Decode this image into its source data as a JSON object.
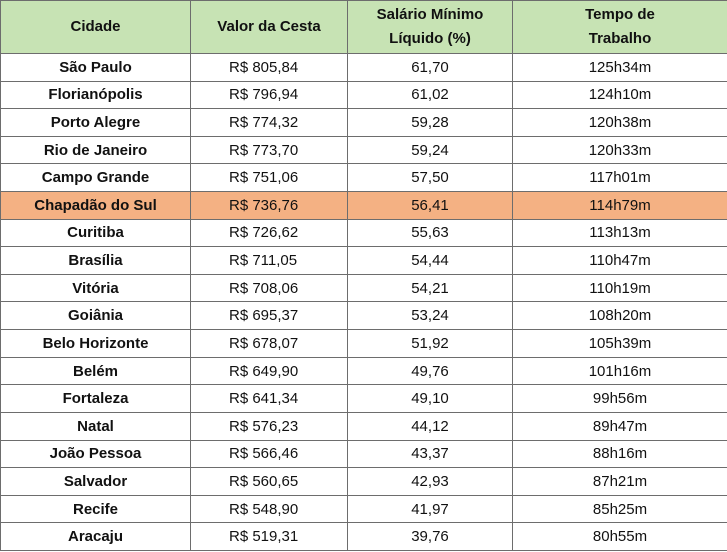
{
  "table": {
    "headers": {
      "cidade": "Cidade",
      "valor": "Valor da Cesta",
      "salario_1": "Salário Mínimo",
      "salario_2": "Líquido (%)",
      "tempo_1": "Tempo de",
      "tempo_2": "Trabalho"
    },
    "highlight_color": "#f4b183",
    "header_color": "#c7e3b4",
    "rows": [
      {
        "cidade": "São Paulo",
        "valor": "R$ 805,84",
        "salario": "61,70",
        "tempo": "125h34m"
      },
      {
        "cidade": "Florianópolis",
        "valor": "R$ 796,94",
        "salario": "61,02",
        "tempo": "124h10m"
      },
      {
        "cidade": "Porto Alegre",
        "valor": "R$ 774,32",
        "salario": "59,28",
        "tempo": "120h38m"
      },
      {
        "cidade": "Rio de Janeiro",
        "valor": "R$ 773,70",
        "salario": "59,24",
        "tempo": "120h33m"
      },
      {
        "cidade": "Campo Grande",
        "valor": "R$ 751,06",
        "salario": "57,50",
        "tempo": "117h01m"
      },
      {
        "cidade": "Chapadão do Sul",
        "valor": "R$ 736,76",
        "salario": "56,41",
        "tempo": "114h79m"
      },
      {
        "cidade": "Curitiba",
        "valor": "R$ 726,62",
        "salario": "55,63",
        "tempo": "113h13m"
      },
      {
        "cidade": "Brasília",
        "valor": "R$ 711,05",
        "salario": "54,44",
        "tempo": "110h47m"
      },
      {
        "cidade": "Vitória",
        "valor": "R$ 708,06",
        "salario": "54,21",
        "tempo": "110h19m"
      },
      {
        "cidade": "Goiânia",
        "valor": "R$ 695,37",
        "salario": "53,24",
        "tempo": "108h20m"
      },
      {
        "cidade": "Belo Horizonte",
        "valor": "R$ 678,07",
        "salario": "51,92",
        "tempo": "105h39m"
      },
      {
        "cidade": "Belém",
        "valor": "R$ 649,90",
        "salario": "49,76",
        "tempo": "101h16m"
      },
      {
        "cidade": "Fortaleza",
        "valor": "R$ 641,34",
        "salario": "49,10",
        "tempo": "99h56m"
      },
      {
        "cidade": "Natal",
        "valor": "R$ 576,23",
        "salario": "44,12",
        "tempo": "89h47m"
      },
      {
        "cidade": "João Pessoa",
        "valor": "R$ 566,46",
        "salario": "43,37",
        "tempo": "88h16m"
      },
      {
        "cidade": "Salvador",
        "valor": "R$ 560,65",
        "salario": "42,93",
        "tempo": "87h21m"
      },
      {
        "cidade": "Recife",
        "valor": "R$ 548,90",
        "salario": "41,97",
        "tempo": "85h25m"
      },
      {
        "cidade": "Aracaju",
        "valor": "R$ 519,31",
        "salario": "39,76",
        "tempo": "80h55m"
      }
    ]
  }
}
